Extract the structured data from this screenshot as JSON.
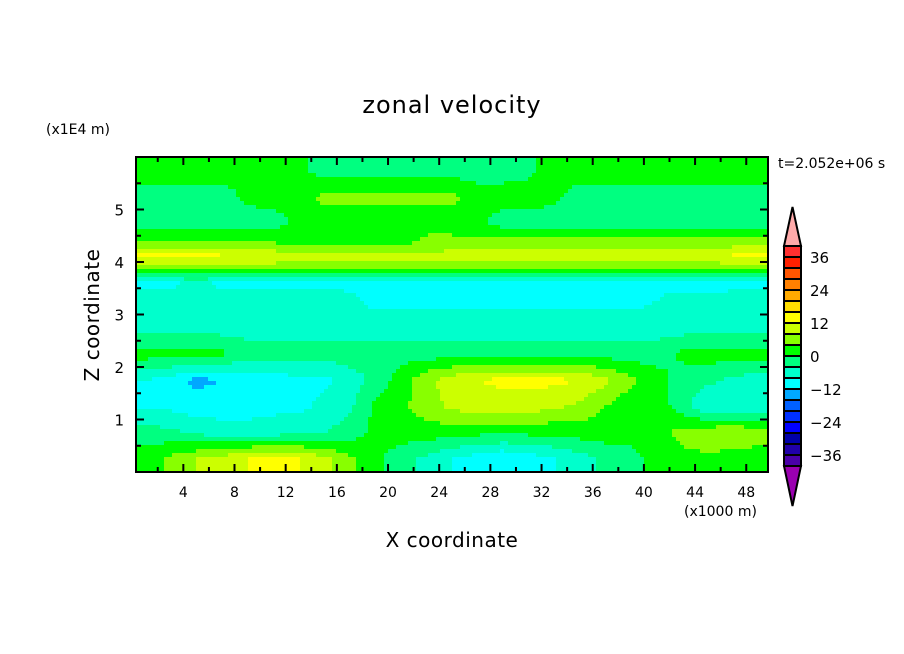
{
  "chart_data": {
    "type": "heatmap",
    "subtype": "filled-contour",
    "title": "zonal velocity",
    "xlabel": "X coordinate",
    "ylabel": "Z coordinate",
    "x_unit_label": "(x1000 m)",
    "y_unit_label": "(x1E4 m)",
    "time_label": "t=2.052e+06 s",
    "xlim": [
      0.3,
      49.7
    ],
    "ylim": [
      0,
      6
    ],
    "x_ticks": [
      4,
      8,
      12,
      16,
      20,
      24,
      28,
      32,
      36,
      40,
      44,
      48
    ],
    "x_tick_labels": [
      "4",
      "8",
      "12",
      "16",
      "20",
      "24",
      "28",
      "32",
      "36",
      "40",
      "44",
      "48"
    ],
    "y_ticks": [
      1,
      2,
      3,
      4,
      5
    ],
    "y_tick_labels": [
      "1",
      "2",
      "3",
      "4",
      "5"
    ],
    "x_minor_step": 2,
    "y_minor_step": 0.5,
    "colorbar": {
      "levels_min": -40,
      "levels_max": 40,
      "step": 4,
      "tick_values": [
        36,
        24,
        12,
        0,
        -12,
        -24,
        -36
      ],
      "tick_labels": [
        "36",
        "24",
        "12",
        "0",
        "−12",
        "−24",
        "−36"
      ],
      "colors_low_to_high": [
        "#4a00a8",
        "#2000a8",
        "#0000a8",
        "#0000ff",
        "#0030ff",
        "#0060ff",
        "#00a8ff",
        "#00ffff",
        "#00ffcc",
        "#00ff80",
        "#00ff00",
        "#88ff00",
        "#ccff00",
        "#ffff00",
        "#ffdd00",
        "#ffaa00",
        "#ff8000",
        "#ff5500",
        "#ff2000",
        "#ff3030"
      ],
      "under_color": "#9a00b0",
      "over_color": "#ffaaaa"
    },
    "grid": {
      "x": [
        1,
        3,
        5,
        7,
        9,
        11,
        13,
        15,
        17,
        19,
        21,
        23,
        25,
        27,
        29,
        31,
        33,
        35,
        37,
        39,
        41,
        43,
        45,
        47,
        49
      ],
      "z": [
        5.75,
        5.25,
        4.75,
        4.4,
        4.1,
        3.9,
        3.6,
        3.25,
        2.75,
        2.25,
        1.75,
        1.25,
        0.75,
        0.25
      ],
      "values": [
        [
          2,
          2,
          2,
          2,
          2,
          2,
          1,
          -2,
          -2,
          -2,
          -2,
          -2,
          -2,
          -2,
          -2,
          -1,
          2,
          2,
          2,
          2,
          2,
          2,
          2,
          2,
          2
        ],
        [
          -2,
          -2,
          -2,
          -2,
          1,
          2,
          2,
          5,
          5,
          5,
          5,
          5,
          5,
          2,
          2,
          2,
          1,
          -2,
          -2,
          -2,
          -2,
          -2,
          -2,
          -2,
          -2
        ],
        [
          -2,
          -2,
          -2,
          -2,
          -2,
          -2,
          1,
          2,
          2,
          2,
          2,
          2,
          2,
          1,
          -2,
          -2,
          -2,
          -2,
          -2,
          -2,
          -2,
          -2,
          -2,
          -2,
          -2
        ],
        [
          4,
          4,
          4,
          4,
          3,
          3,
          3,
          3,
          3,
          3,
          2,
          5,
          5,
          5,
          5,
          5,
          5,
          5,
          5,
          5,
          5,
          5,
          5,
          5,
          5
        ],
        [
          13,
          13,
          13,
          13,
          11,
          11,
          10,
          10,
          9,
          9,
          9,
          9,
          10,
          10,
          10,
          10,
          11,
          11,
          10,
          10,
          12,
          12,
          12,
          13,
          13
        ],
        [
          6,
          6,
          6,
          6,
          6,
          6,
          6,
          6,
          6,
          6,
          5,
          5,
          5,
          5,
          5,
          5,
          5,
          5,
          5,
          5,
          5,
          5,
          5,
          5,
          5
        ],
        [
          -9,
          -9,
          -6,
          -9,
          -9,
          -9,
          -9,
          -9,
          -9,
          -9,
          -9,
          -9,
          -9,
          -9,
          -9,
          -9,
          -9,
          -9,
          -9,
          -9,
          -9,
          -10,
          -11,
          -9,
          -9
        ],
        [
          -6,
          -6,
          -6,
          -6,
          -6,
          -6,
          -6,
          -6,
          -7,
          -9,
          -9,
          -9,
          -9,
          -9,
          -9,
          -9,
          -9,
          -9,
          -9,
          -9,
          -8,
          -6,
          -6,
          -6,
          -6
        ],
        [
          -6,
          -6,
          -6,
          -6,
          -6,
          -6,
          -6,
          -6,
          -6,
          -6,
          -6,
          -6,
          -6,
          -6,
          -6,
          -6,
          -6,
          -6,
          -6,
          -6,
          -6,
          -6,
          -6,
          -6,
          -6
        ],
        [
          2,
          2,
          2,
          1,
          -2,
          -2,
          -2,
          -2,
          -2,
          -2,
          -2,
          -2,
          -2,
          -2,
          -2,
          -2,
          -2,
          -2,
          -2,
          -2,
          -2,
          1,
          2,
          2,
          2
        ],
        [
          -8,
          -10,
          -13,
          -12,
          -10,
          -10,
          -9,
          -9,
          -6,
          -3,
          2,
          7,
          10,
          12,
          13,
          13,
          13,
          12,
          9,
          5,
          2,
          -2,
          -3,
          -5,
          -6
        ],
        [
          -9,
          -9,
          -10,
          -10,
          -10,
          -9,
          -9,
          -7,
          -5,
          1,
          3,
          6,
          9,
          10,
          10,
          10,
          9,
          7,
          4,
          1,
          2,
          -2,
          -8,
          -8,
          -8
        ],
        [
          -2,
          -3,
          -5,
          -6,
          -6,
          -6,
          -5,
          -4,
          -2,
          1,
          2,
          2,
          2,
          1,
          1,
          1,
          1,
          2,
          2,
          2,
          3,
          5,
          7,
          8,
          6
        ],
        [
          2,
          5,
          8,
          10,
          12,
          13,
          12,
          9,
          5,
          1,
          -2,
          -5,
          -8,
          -10,
          -12,
          -10,
          -8,
          -6,
          -3,
          -2,
          2,
          3,
          3,
          2,
          2
        ]
      ]
    }
  }
}
